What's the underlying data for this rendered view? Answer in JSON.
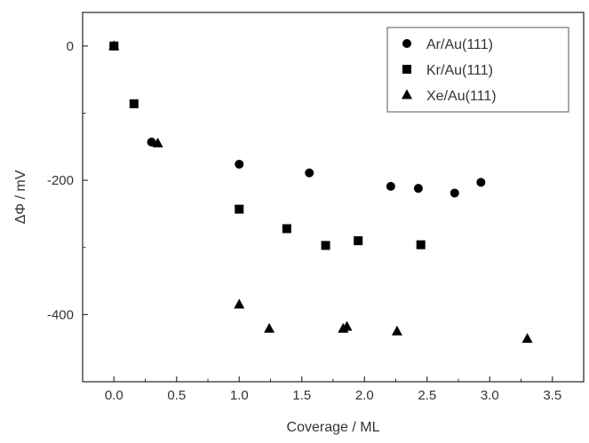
{
  "chart_data": {
    "type": "scatter",
    "title": "",
    "xlabel": "Coverage / ML",
    "ylabel": "ΔΦ / mV",
    "xlim": [
      -0.25,
      3.75
    ],
    "ylim": [
      -500,
      50
    ],
    "x_ticks": [
      0.0,
      0.5,
      1.0,
      1.5,
      2.0,
      2.5,
      3.0,
      3.5
    ],
    "x_tick_labels": [
      "0.0",
      "0.5",
      "1.0",
      "1.5",
      "2.0",
      "2.5",
      "3.0",
      "3.5"
    ],
    "y_ticks": [
      0,
      -200,
      -400
    ],
    "y_tick_labels": [
      "0",
      "-200",
      "-400"
    ],
    "grid": false,
    "legend_position": "top-right",
    "series": [
      {
        "name": "Ar/Au(111)",
        "marker": "circle",
        "points": [
          {
            "x": 0.0,
            "y": 0
          },
          {
            "x": 0.3,
            "y": -143
          },
          {
            "x": 1.0,
            "y": -176
          },
          {
            "x": 1.56,
            "y": -189
          },
          {
            "x": 2.21,
            "y": -209
          },
          {
            "x": 2.43,
            "y": -212
          },
          {
            "x": 2.72,
            "y": -219
          },
          {
            "x": 2.93,
            "y": -203
          }
        ]
      },
      {
        "name": "Kr/Au(111)",
        "marker": "square",
        "points": [
          {
            "x": 0.0,
            "y": 0
          },
          {
            "x": 0.16,
            "y": -86
          },
          {
            "x": 1.0,
            "y": -243
          },
          {
            "x": 1.38,
            "y": -272
          },
          {
            "x": 1.69,
            "y": -297
          },
          {
            "x": 1.95,
            "y": -290
          },
          {
            "x": 2.45,
            "y": -296
          }
        ]
      },
      {
        "name": "Xe/Au(111)",
        "marker": "triangle",
        "points": [
          {
            "x": 0.0,
            "y": 0
          },
          {
            "x": 0.35,
            "y": -145
          },
          {
            "x": 1.0,
            "y": -385
          },
          {
            "x": 1.24,
            "y": -421
          },
          {
            "x": 1.83,
            "y": -421
          },
          {
            "x": 1.86,
            "y": -418
          },
          {
            "x": 2.26,
            "y": -425
          },
          {
            "x": 3.3,
            "y": -436
          }
        ]
      }
    ]
  }
}
